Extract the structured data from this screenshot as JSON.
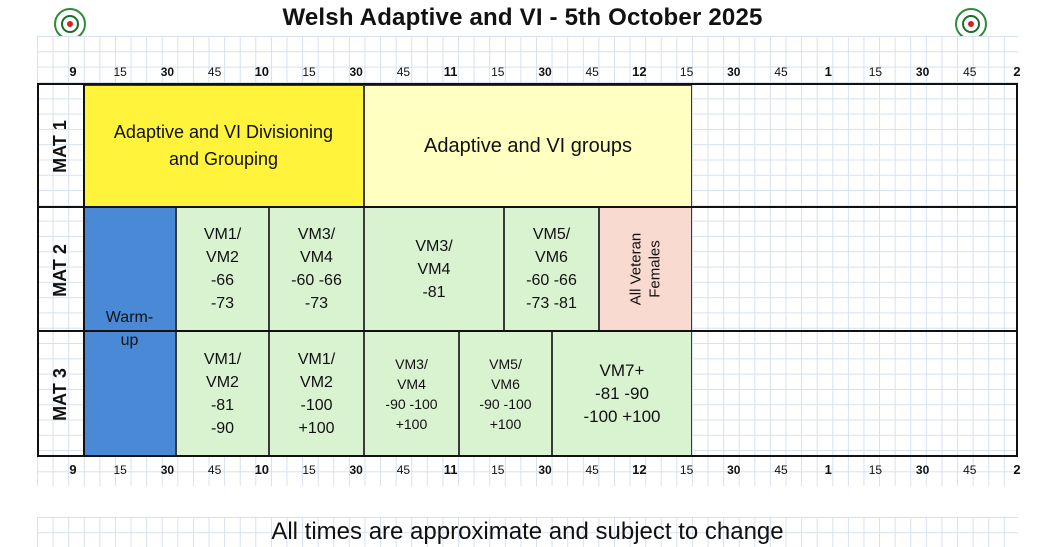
{
  "title": "Welsh Adaptive and VI - 5th October 2025",
  "logos": [
    "club-emblem-icon",
    "club-emblem-icon"
  ],
  "time_ticks": [
    {
      "label": "9",
      "kind": "hour"
    },
    {
      "label": "15",
      "kind": "quarter"
    },
    {
      "label": "30",
      "kind": "half"
    },
    {
      "label": "45",
      "kind": "quarter"
    },
    {
      "label": "10",
      "kind": "hour"
    },
    {
      "label": "15",
      "kind": "quarter"
    },
    {
      "label": "30",
      "kind": "half"
    },
    {
      "label": "45",
      "kind": "quarter"
    },
    {
      "label": "11",
      "kind": "hour"
    },
    {
      "label": "15",
      "kind": "quarter"
    },
    {
      "label": "30",
      "kind": "half"
    },
    {
      "label": "45",
      "kind": "quarter"
    },
    {
      "label": "12",
      "kind": "hour"
    },
    {
      "label": "15",
      "kind": "quarter"
    },
    {
      "label": "30",
      "kind": "half"
    },
    {
      "label": "45",
      "kind": "quarter"
    },
    {
      "label": "1",
      "kind": "hour"
    },
    {
      "label": "15",
      "kind": "quarter"
    },
    {
      "label": "30",
      "kind": "half"
    },
    {
      "label": "45",
      "kind": "quarter"
    },
    {
      "label": "2",
      "kind": "hour"
    }
  ],
  "mats": [
    {
      "label": "MAT 1"
    },
    {
      "label": "MAT 2"
    },
    {
      "label": "MAT 3"
    }
  ],
  "blocks": {
    "mat1_divisioning": "Adaptive and VI Divisioning\nand Grouping",
    "mat1_groups": "Adaptive and VI groups",
    "warmup": "Warm-\nup",
    "mat2_a": "VM1/\nVM2\n-66\n-73",
    "mat2_b": "VM3/\nVM4\n-60 -66\n-73",
    "mat2_c": "VM3/\nVM4\n-81",
    "mat2_d": "VM5/\nVM6\n-60 -66\n-73 -81",
    "mat2_e": "All Veteran\nFemales",
    "mat3_a": "VM1/\nVM2\n-81\n-90",
    "mat3_b": "VM1/\nVM2\n-100\n+100",
    "mat3_c": "VM3/\nVM4\n-90  -100\n+100",
    "mat3_d": "VM5/\nVM6\n-90 -100\n+100",
    "mat3_e": "VM7+\n-81 -90\n-100 +100"
  },
  "colors": {
    "yellow": "#fff33b",
    "pale_yellow": "#ffffc2",
    "green": "#d9f2d0",
    "blue": "#4a89d6",
    "peach": "#f9dad0",
    "grid": "#d6e1ee"
  },
  "footer": "All times are approximate and subject to change"
}
